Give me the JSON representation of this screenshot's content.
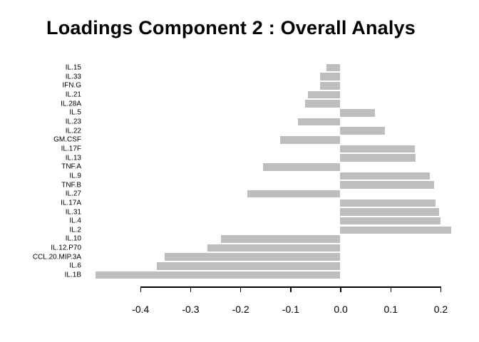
{
  "chart": {
    "bar_color": "#bebebe",
    "axis_color": "#000000"
  },
  "chart_data": {
    "type": "bar",
    "orientation": "horizontal",
    "title": "Loadings Component 2 : Overall Analys",
    "categories": [
      "IL.15",
      "IL.33",
      "IFN.G",
      "IL.21",
      "IL.28A",
      "IL.5",
      "IL.23",
      "IL.22",
      "GM.CSF",
      "IL.17F",
      "IL.13",
      "TNF.A",
      "IL.9",
      "TNF.B",
      "IL.27",
      "IL.17A",
      "IL.31",
      "IL.4",
      "IL.2",
      "IL.10",
      "IL.12.P70",
      "CCL.20.MIP.3A",
      "IL.6",
      "IL.1B"
    ],
    "values": [
      -0.027,
      -0.04,
      -0.041,
      -0.065,
      -0.07,
      0.069,
      -0.084,
      0.09,
      -0.12,
      0.149,
      0.151,
      -0.154,
      0.179,
      0.188,
      -0.186,
      0.19,
      0.197,
      0.2,
      0.222,
      -0.239,
      -0.265,
      -0.351,
      -0.367,
      -0.489
    ],
    "x_ticks": [
      -0.4,
      -0.3,
      -0.2,
      -0.1,
      0.0,
      0.1,
      0.2
    ],
    "x_tick_labels": [
      "-0.4",
      "-0.3",
      "-0.2",
      "-0.1",
      "0.0",
      "0.1",
      "0.2"
    ],
    "xlim": [
      -0.4,
      0.2
    ],
    "xlabel": "",
    "ylabel": "",
    "grid": false,
    "legend": null,
    "bar_color": "#bebebe"
  }
}
